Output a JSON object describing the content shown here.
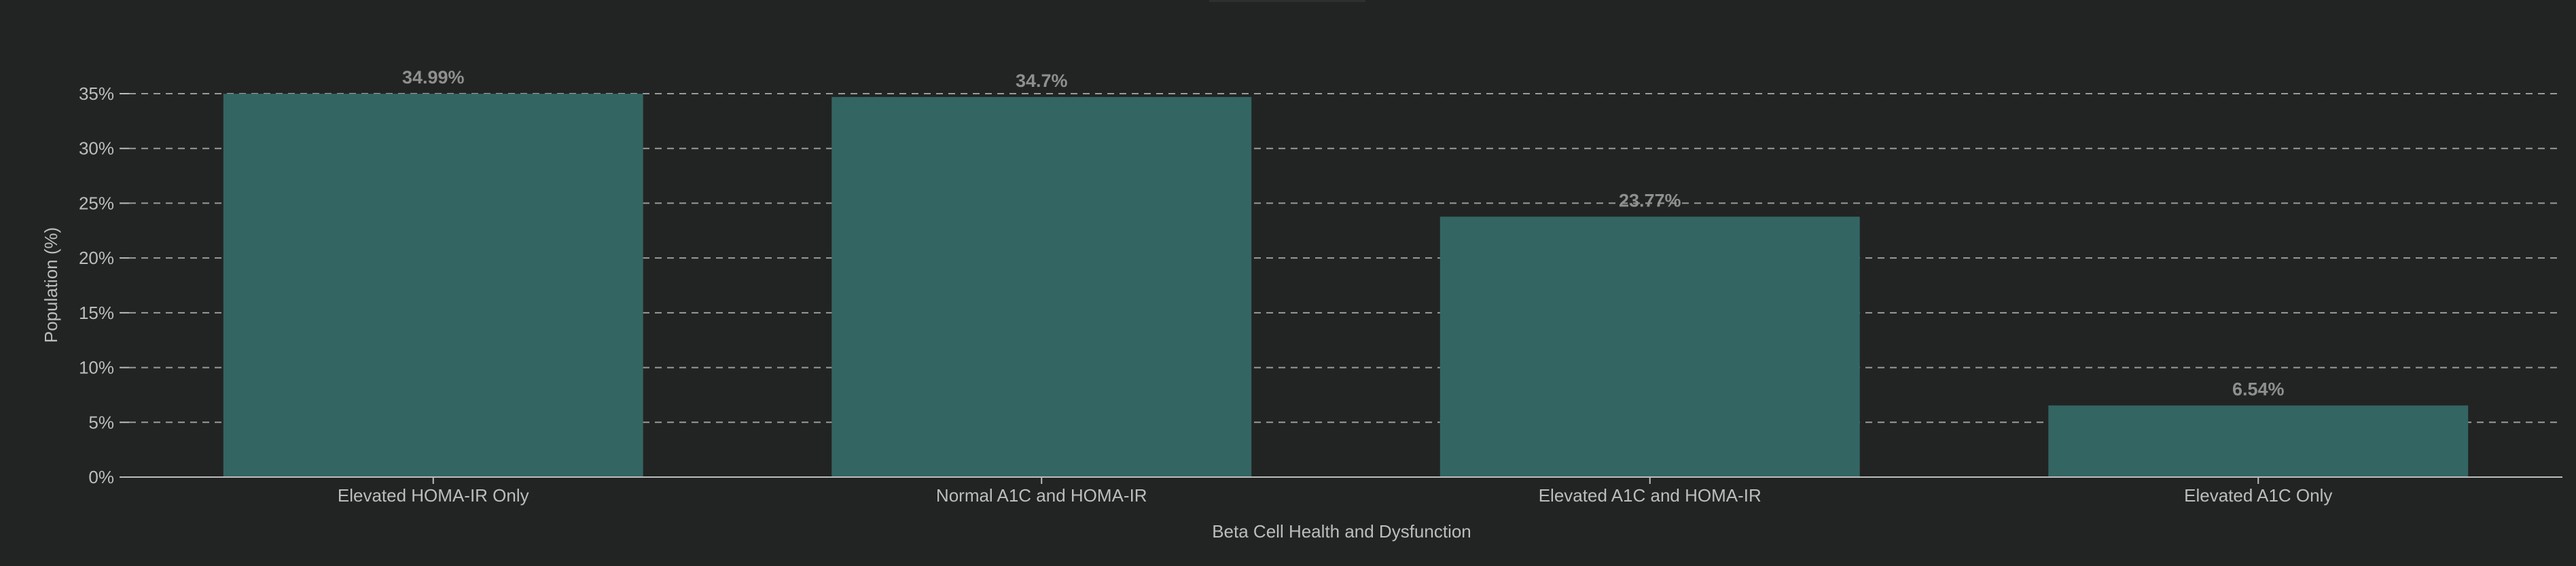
{
  "chart_data": {
    "type": "bar",
    "categories": [
      "Elevated HOMA-IR Only",
      "Normal A1C and HOMA-IR",
      "Elevated A1C and HOMA-IR",
      "Elevated A1C Only"
    ],
    "values": [
      34.99,
      34.7,
      23.77,
      6.54
    ],
    "data_labels": [
      "34.99%",
      "34.7%",
      "23.77%",
      "6.54%"
    ],
    "title": "",
    "xlabel": "Beta Cell Health and Dysfunction",
    "ylabel": "Population (%)",
    "ylim": [
      0,
      35
    ],
    "yticks": [
      0,
      5,
      10,
      15,
      20,
      25,
      30,
      35
    ],
    "ytick_labels": [
      "0%",
      "5%",
      "10%",
      "15%",
      "20%",
      "25%",
      "30%",
      "35%"
    ],
    "grid": true,
    "legend": "none",
    "colors": {
      "background": "#222423",
      "bar": "#336563",
      "grid": "#9a9a9a",
      "axis": "#bdbdbd",
      "text": "#bdbdbd",
      "data_label": "#8f8f8f"
    }
  }
}
